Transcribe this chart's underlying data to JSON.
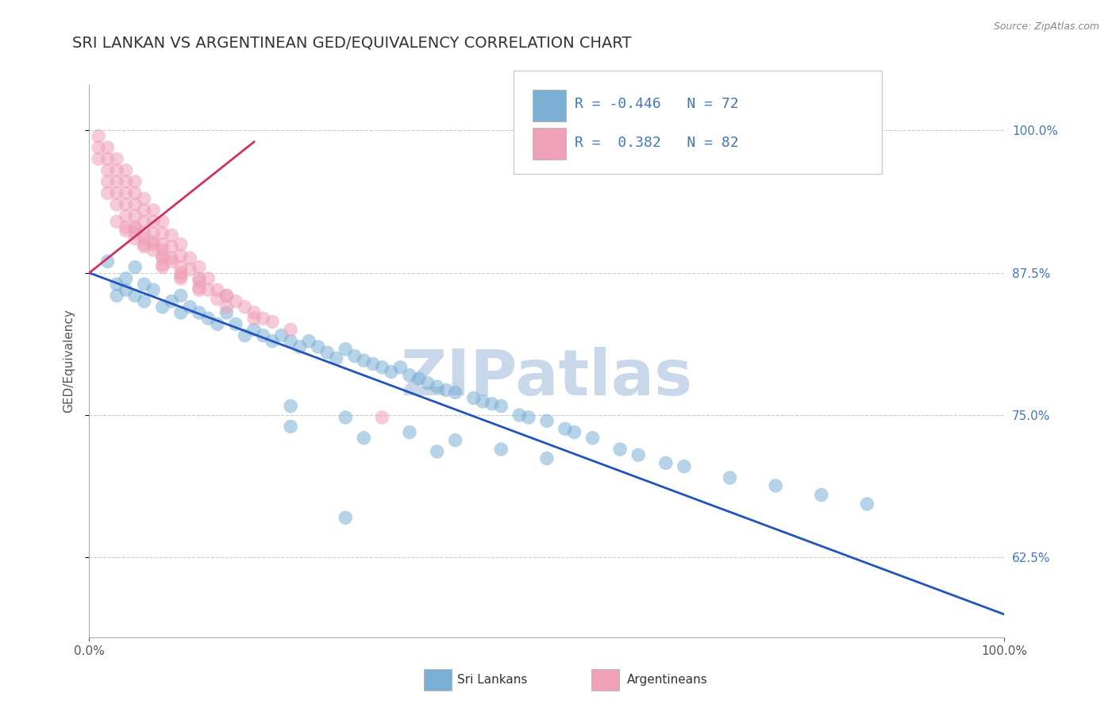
{
  "title": "SRI LANKAN VS ARGENTINEAN GED/EQUIVALENCY CORRELATION CHART",
  "source_text": "Source: ZipAtlas.com",
  "ylabel": "GED/Equivalency",
  "xticklabels": [
    "0.0%",
    "100.0%"
  ],
  "yticklabels": [
    "62.5%",
    "75.0%",
    "87.5%",
    "100.0%"
  ],
  "xlim": [
    0.0,
    1.0
  ],
  "ylim": [
    0.555,
    1.04
  ],
  "yticks": [
    0.625,
    0.75,
    0.875,
    1.0
  ],
  "grid_color": "#cccccc",
  "background_color": "#ffffff",
  "watermark": "ZIPatlas",
  "watermark_color": "#c8d8ea",
  "legend_blue_label": "Sri Lankans",
  "legend_pink_label": "Argentineans",
  "blue_R": "-0.446",
  "blue_N": "72",
  "pink_R": "0.382",
  "pink_N": "82",
  "blue_color": "#7bafd4",
  "pink_color": "#f0a0b8",
  "blue_line_color": "#2255bb",
  "pink_line_color": "#cc3366",
  "title_fontsize": 14,
  "axis_label_fontsize": 11,
  "tick_fontsize": 11,
  "blue_line_x": [
    0.0,
    1.0
  ],
  "blue_line_y": [
    0.875,
    0.575
  ],
  "pink_line_x": [
    0.0,
    0.18
  ],
  "pink_line_y": [
    0.875,
    0.99
  ],
  "blue_scatter_x": [
    0.02,
    0.03,
    0.03,
    0.04,
    0.04,
    0.05,
    0.05,
    0.06,
    0.06,
    0.07,
    0.08,
    0.09,
    0.1,
    0.1,
    0.11,
    0.12,
    0.13,
    0.14,
    0.15,
    0.16,
    0.17,
    0.18,
    0.19,
    0.2,
    0.21,
    0.22,
    0.23,
    0.24,
    0.25,
    0.26,
    0.27,
    0.28,
    0.29,
    0.3,
    0.31,
    0.32,
    0.33,
    0.34,
    0.35,
    0.36,
    0.37,
    0.38,
    0.39,
    0.4,
    0.42,
    0.43,
    0.44,
    0.45,
    0.47,
    0.48,
    0.5,
    0.52,
    0.53,
    0.55,
    0.58,
    0.6,
    0.63,
    0.65,
    0.7,
    0.75,
    0.8,
    0.85,
    0.22,
    0.28,
    0.35,
    0.4,
    0.45,
    0.5,
    0.22,
    0.3,
    0.38,
    0.28
  ],
  "blue_scatter_y": [
    0.885,
    0.865,
    0.855,
    0.87,
    0.86,
    0.88,
    0.855,
    0.865,
    0.85,
    0.86,
    0.845,
    0.85,
    0.84,
    0.855,
    0.845,
    0.84,
    0.835,
    0.83,
    0.84,
    0.83,
    0.82,
    0.825,
    0.82,
    0.815,
    0.82,
    0.815,
    0.81,
    0.815,
    0.81,
    0.805,
    0.8,
    0.808,
    0.802,
    0.798,
    0.795,
    0.792,
    0.788,
    0.792,
    0.785,
    0.782,
    0.778,
    0.775,
    0.772,
    0.77,
    0.765,
    0.762,
    0.76,
    0.758,
    0.75,
    0.748,
    0.745,
    0.738,
    0.735,
    0.73,
    0.72,
    0.715,
    0.708,
    0.705,
    0.695,
    0.688,
    0.68,
    0.672,
    0.758,
    0.748,
    0.735,
    0.728,
    0.72,
    0.712,
    0.74,
    0.73,
    0.718,
    0.66
  ],
  "pink_scatter_x": [
    0.01,
    0.01,
    0.01,
    0.02,
    0.02,
    0.02,
    0.02,
    0.02,
    0.03,
    0.03,
    0.03,
    0.03,
    0.03,
    0.04,
    0.04,
    0.04,
    0.04,
    0.04,
    0.04,
    0.05,
    0.05,
    0.05,
    0.05,
    0.05,
    0.05,
    0.06,
    0.06,
    0.06,
    0.06,
    0.06,
    0.07,
    0.07,
    0.07,
    0.07,
    0.08,
    0.08,
    0.08,
    0.08,
    0.08,
    0.09,
    0.09,
    0.09,
    0.1,
    0.1,
    0.1,
    0.1,
    0.11,
    0.11,
    0.12,
    0.12,
    0.12,
    0.13,
    0.13,
    0.14,
    0.15,
    0.15,
    0.16,
    0.17,
    0.18,
    0.18,
    0.19,
    0.2,
    0.22,
    0.08,
    0.06,
    0.04,
    0.05,
    0.03,
    0.07,
    0.09,
    0.12,
    0.15,
    0.1,
    0.08,
    0.05,
    0.07,
    0.1,
    0.12,
    0.14,
    0.06,
    0.08,
    0.32
  ],
  "pink_scatter_y": [
    0.995,
    0.985,
    0.975,
    0.985,
    0.975,
    0.965,
    0.955,
    0.945,
    0.975,
    0.965,
    0.955,
    0.945,
    0.935,
    0.965,
    0.955,
    0.945,
    0.935,
    0.925,
    0.915,
    0.955,
    0.945,
    0.935,
    0.925,
    0.915,
    0.905,
    0.94,
    0.93,
    0.92,
    0.91,
    0.9,
    0.93,
    0.92,
    0.91,
    0.9,
    0.92,
    0.91,
    0.9,
    0.89,
    0.88,
    0.908,
    0.898,
    0.888,
    0.9,
    0.89,
    0.88,
    0.87,
    0.888,
    0.878,
    0.88,
    0.87,
    0.86,
    0.87,
    0.86,
    0.86,
    0.855,
    0.845,
    0.85,
    0.845,
    0.84,
    0.835,
    0.835,
    0.832,
    0.825,
    0.895,
    0.905,
    0.912,
    0.915,
    0.92,
    0.895,
    0.885,
    0.868,
    0.855,
    0.875,
    0.888,
    0.91,
    0.902,
    0.872,
    0.862,
    0.852,
    0.898,
    0.882,
    0.748
  ]
}
